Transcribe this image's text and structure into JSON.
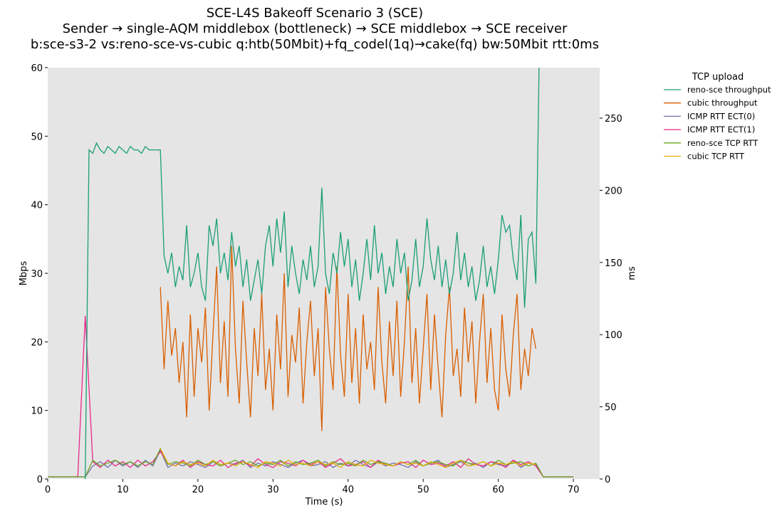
{
  "chart_data": {
    "type": "line",
    "title": [
      "SCE-L4S Bakeoff Scenario 3 (SCE)",
      "Sender → single-AQM middlebox (bottleneck) → SCE middlebox → SCE receiver",
      "b:sce-s3-2 vs:reno-sce-vs-cubic q:htb(50Mbit)+fq_codel(1q)→cake(fq) bw:50Mbit rtt:0ms"
    ],
    "xlabel": "Time (s)",
    "ylabel": "Mbps",
    "y2label": "ms",
    "xlim": [
      0,
      73.5
    ],
    "ylim": [
      0,
      60
    ],
    "y2lim": [
      0,
      285
    ],
    "xticks": [
      "0",
      "10",
      "20",
      "30",
      "40",
      "50",
      "60",
      "70"
    ],
    "yticks": [
      "0",
      "10",
      "20",
      "30",
      "40",
      "50",
      "60"
    ],
    "y2ticks": [
      "0",
      "50",
      "100",
      "150",
      "200",
      "250"
    ],
    "grid": false,
    "legend": {
      "title": "TCP upload",
      "placement": "outside-right"
    },
    "series": [
      {
        "name": "reno-sce throughput",
        "axis": "left",
        "color": "#1b9e77",
        "x_start": 5.0,
        "x_step": 0.5,
        "values": [
          0,
          48,
          47.5,
          49,
          48,
          47.5,
          48.5,
          48,
          47.5,
          48.5,
          48,
          47.5,
          48.5,
          48,
          48,
          47.5,
          48.5,
          48,
          48,
          48,
          48,
          32.5,
          30,
          33,
          28,
          31,
          29,
          37,
          28,
          30,
          33,
          28,
          26,
          37,
          34,
          38,
          30,
          33,
          29,
          36,
          31,
          34,
          28,
          32,
          26,
          29,
          32,
          27,
          34,
          37,
          31,
          38,
          33,
          39,
          28,
          34,
          30,
          27,
          32,
          29,
          34,
          28,
          31,
          42.5,
          30,
          27,
          33,
          30,
          36,
          31,
          35,
          28,
          32,
          26,
          30,
          35,
          29,
          37,
          30,
          33,
          27,
          31,
          28,
          35,
          30,
          33,
          26,
          29,
          35,
          28,
          31,
          38,
          32,
          29,
          34,
          28,
          32,
          27,
          30,
          36,
          29,
          33,
          28,
          31,
          26,
          29,
          34,
          28,
          31,
          27,
          32,
          38.5,
          36,
          37,
          32,
          29,
          38.5,
          25,
          35,
          36,
          28.5,
          65
        ]
      },
      {
        "name": "cubic throughput",
        "axis": "left",
        "color": "#d95f02",
        "x_start": 15.0,
        "x_step": 0.5,
        "values": [
          28,
          16,
          26,
          18,
          22,
          14,
          20,
          9,
          24,
          12,
          22,
          17,
          25,
          10,
          21,
          31,
          14,
          23,
          12,
          34,
          19,
          11,
          26,
          17,
          9,
          22,
          15,
          27,
          13,
          19,
          10,
          24,
          16,
          30,
          12,
          21,
          17,
          25,
          11,
          20,
          26,
          15,
          22,
          7,
          28,
          19,
          13,
          31,
          18,
          12,
          27,
          14,
          22,
          11,
          24,
          16,
          20,
          13,
          28,
          17,
          11,
          23,
          15,
          26,
          12,
          20,
          31,
          14,
          22,
          11,
          19,
          27,
          13,
          24,
          16,
          9,
          21,
          28,
          15,
          19,
          12,
          25,
          17,
          23,
          11,
          20,
          27,
          14,
          22,
          13,
          10,
          24,
          16,
          12,
          21,
          27,
          13,
          19,
          15,
          22,
          19
        ]
      },
      {
        "name": "ICMP RTT ECT(0)",
        "axis": "right",
        "color": "#7570b3",
        "x_start": 0,
        "x_step": 1,
        "values": [
          1.5,
          1.5,
          1.5,
          1.5,
          1.5,
          1.5,
          9,
          12,
          8,
          13,
          9,
          12,
          8,
          13,
          9,
          20,
          8,
          11,
          9,
          12,
          10,
          8,
          12,
          9,
          11,
          10,
          13,
          8,
          11,
          9,
          12,
          10,
          8,
          11,
          13,
          9,
          10,
          12,
          8,
          11,
          9,
          13,
          10,
          8,
          12,
          9,
          11,
          10,
          8,
          12,
          9,
          11,
          13,
          8,
          10,
          12,
          9,
          11,
          8,
          12,
          10,
          9,
          13,
          8,
          11,
          10,
          1.5,
          1.5,
          1.5,
          1.5,
          1.5
        ]
      },
      {
        "name": "ICMP RTT ECT(1)",
        "axis": "right",
        "color": "#e7298a",
        "x_start": 0,
        "x_step": 1,
        "values": [
          1.5,
          1.5,
          1.5,
          1.5,
          1.5,
          113,
          12,
          8,
          13,
          9,
          12,
          8,
          13,
          9,
          12,
          19,
          11,
          9,
          13,
          8,
          12,
          10,
          9,
          13,
          8,
          11,
          12,
          9,
          14,
          10,
          8,
          12,
          11,
          9,
          13,
          10,
          12,
          8,
          11,
          14,
          9,
          10,
          12,
          8,
          13,
          10,
          9,
          11,
          12,
          8,
          13,
          10,
          11,
          9,
          12,
          8,
          14,
          10,
          9,
          12,
          11,
          8,
          13,
          10,
          12,
          9,
          1.5,
          1.5,
          1.5,
          1.5,
          1.5
        ]
      },
      {
        "name": "reno-sce TCP RTT",
        "axis": "right",
        "color": "#66a61e",
        "x_start": 0,
        "x_step": 1,
        "values": [
          1.5,
          1.5,
          1.5,
          1.5,
          1.5,
          1.5,
          13,
          9,
          11,
          13,
          10,
          12,
          9,
          12,
          10,
          21,
          10,
          12,
          11,
          9,
          13,
          10,
          12,
          9,
          11,
          13,
          10,
          12,
          9,
          11,
          10,
          13,
          9,
          12,
          10,
          11,
          13,
          9,
          12,
          10,
          11,
          9,
          13,
          10,
          12,
          11,
          9,
          12,
          10,
          13,
          9,
          11,
          12,
          10,
          9,
          13,
          11,
          10,
          12,
          9,
          13,
          10,
          11,
          12,
          9,
          11,
          1.5,
          1.5,
          1.5,
          1.5,
          1.5
        ]
      },
      {
        "name": "cubic TCP RTT",
        "axis": "right",
        "color": "#e6ab02",
        "x_start": 15,
        "x_step": 1,
        "values": [
          21,
          11,
          9,
          12,
          10,
          11,
          9,
          13,
          10,
          11,
          9,
          12,
          10,
          8,
          12,
          11,
          9,
          13,
          10,
          11,
          9,
          12,
          10,
          11,
          8,
          12,
          10,
          9,
          13,
          11,
          10,
          9,
          12,
          10,
          11,
          9,
          12,
          10,
          8,
          11,
          13,
          9,
          10,
          12,
          9,
          11,
          10,
          12,
          9,
          11,
          10
        ]
      }
    ]
  }
}
